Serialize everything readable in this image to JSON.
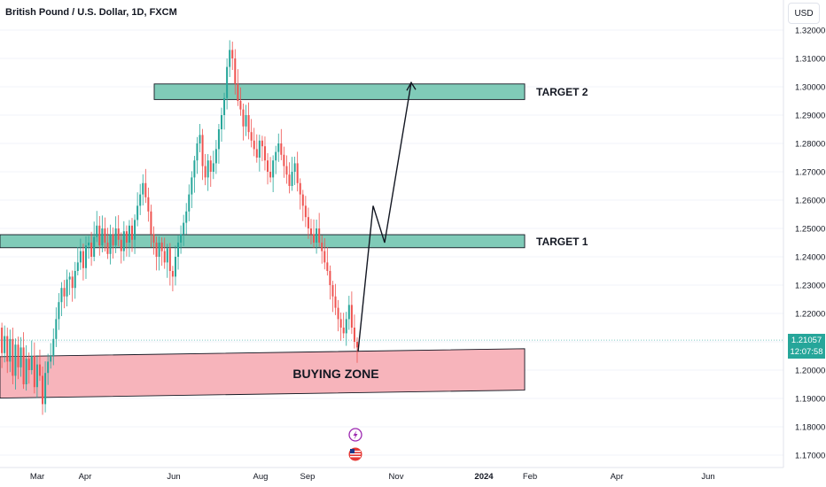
{
  "header": {
    "symbol_title": "British Pound / U.S. Dollar, 1D, FXCM"
  },
  "toolbar": {
    "currency": "USD"
  },
  "last_price": {
    "value": "1.21057",
    "countdown": "12:07:58"
  },
  "colors": {
    "up": "#26a69a",
    "down": "#ef5350",
    "zone_target": "#80cbb8",
    "zone_buy": "#f7b4bb",
    "last_line": "#80cbc4",
    "axis_text": "#131722"
  },
  "icons": {
    "event_lightning": "lightning-icon",
    "event_flag": "us-flag-icon"
  },
  "chart_data": {
    "type": "candlestick",
    "y_ticks": [
      "1.32000",
      "1.31000",
      "1.30000",
      "1.29000",
      "1.28000",
      "1.27000",
      "1.26000",
      "1.25000",
      "1.24000",
      "1.23000",
      "1.22000",
      "1.21000",
      "1.20000",
      "1.19000",
      "1.18000",
      "1.17000"
    ],
    "ylim": [
      1.1665,
      1.3252
    ],
    "x_ticks": [
      "Mar",
      "Apr",
      "Jun",
      "Aug",
      "Sep",
      "Nov",
      "2024",
      "Feb",
      "Apr",
      "Jun"
    ],
    "zones": [
      {
        "name": "target-2",
        "label": "TARGET 2",
        "y_top": 1.301,
        "y_bottom": 1.2955
      },
      {
        "name": "target-1",
        "label": "TARGET 1",
        "y_top": 1.2478,
        "y_bottom": 1.2432
      },
      {
        "name": "buying-zone",
        "label": "BUYING ZONE",
        "y_top": 1.206,
        "y_bottom": 1.192
      }
    ],
    "path_prices": [
      1.2065,
      1.258,
      1.245,
      1.3015
    ],
    "path_dates": [
      "Oct 9",
      "Oct 19",
      "Oct 26",
      "Nov 10"
    ],
    "closes": [
      1.208,
      1.215,
      1.206,
      1.212,
      1.203,
      1.211,
      1.198,
      1.209,
      1.201,
      1.208,
      1.195,
      1.204,
      1.2,
      1.205,
      1.194,
      1.202,
      1.198,
      1.188,
      1.199,
      1.203,
      1.205,
      1.211,
      1.218,
      1.224,
      1.229,
      1.226,
      1.232,
      1.233,
      1.229,
      1.235,
      1.238,
      1.242,
      1.236,
      1.244,
      1.245,
      1.24,
      1.247,
      1.251,
      1.244,
      1.25,
      1.245,
      1.241,
      1.248,
      1.244,
      1.25,
      1.246,
      1.242,
      1.249,
      1.245,
      1.251,
      1.246,
      1.253,
      1.258,
      1.262,
      1.266,
      1.261,
      1.256,
      1.248,
      1.245,
      1.24,
      1.245,
      1.242,
      1.238,
      1.243,
      1.235,
      1.233,
      1.24,
      1.245,
      1.248,
      1.252,
      1.256,
      1.262,
      1.268,
      1.274,
      1.28,
      1.283,
      1.272,
      1.268,
      1.274,
      1.27,
      1.273,
      1.278,
      1.285,
      1.29,
      1.296,
      1.307,
      1.313,
      1.31,
      1.301,
      1.295,
      1.292,
      1.286,
      1.29,
      1.284,
      1.281,
      1.278,
      1.275,
      1.281,
      1.279,
      1.274,
      1.27,
      1.268,
      1.274,
      1.277,
      1.28,
      1.276,
      1.272,
      1.269,
      1.265,
      1.27,
      1.273,
      1.266,
      1.262,
      1.258,
      1.254,
      1.25,
      1.248,
      1.245,
      1.25,
      1.245,
      1.242,
      1.238,
      1.235,
      1.23,
      1.226,
      1.222,
      1.218,
      1.215,
      1.213,
      1.218,
      1.223,
      1.215,
      1.21,
      1.208
    ]
  }
}
